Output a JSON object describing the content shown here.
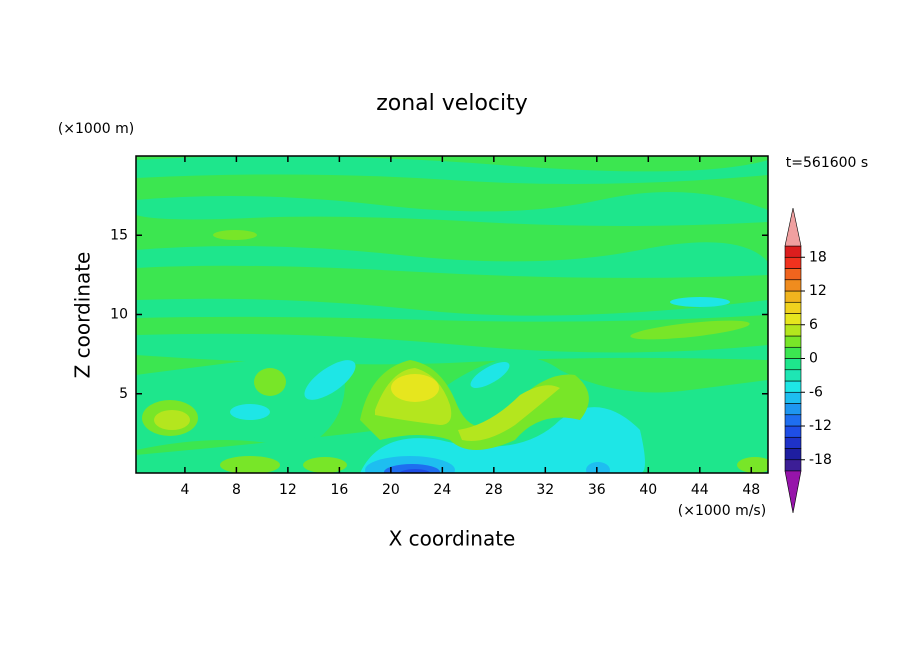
{
  "chart_data": {
    "type": "contour",
    "title": "zonal velocity",
    "x_label": "X coordinate",
    "y_label": "Z coordinate",
    "y_unit": "(×1000 m)",
    "x_unit": "(×1000 m/s)",
    "time_label": "t=561600 s",
    "xlim": [
      0.2,
      49.3
    ],
    "xticks": [
      4,
      8,
      12,
      16,
      20,
      24,
      28,
      32,
      36,
      40,
      44,
      48
    ],
    "ylim": [
      0,
      20
    ],
    "yticks": [
      5,
      10,
      15
    ],
    "levels": [
      -20,
      -18,
      -16,
      -14,
      -12,
      -10,
      -8,
      -6,
      -4,
      -2,
      0,
      2,
      4,
      6,
      8,
      10,
      12,
      14,
      16,
      18,
      20
    ],
    "level_colors": [
      "#3c1e96",
      "#1e1ea0",
      "#1e32c8",
      "#1e4ee6",
      "#1e6ef0",
      "#1e96f0",
      "#1ebef0",
      "#1ee6e6",
      "#1ee6b4",
      "#1ee68c",
      "#3ce650",
      "#78e628",
      "#b4e61e",
      "#e6e61e",
      "#f0d21e",
      "#f0b41e",
      "#f08c1e",
      "#f0641e",
      "#f0321e",
      "#dc1e1e"
    ],
    "under_color": "#9614aa",
    "over_color": "#f0a0a0",
    "colorbar_ticks": [
      -18,
      -12,
      -6,
      0,
      6,
      12,
      18
    ]
  }
}
